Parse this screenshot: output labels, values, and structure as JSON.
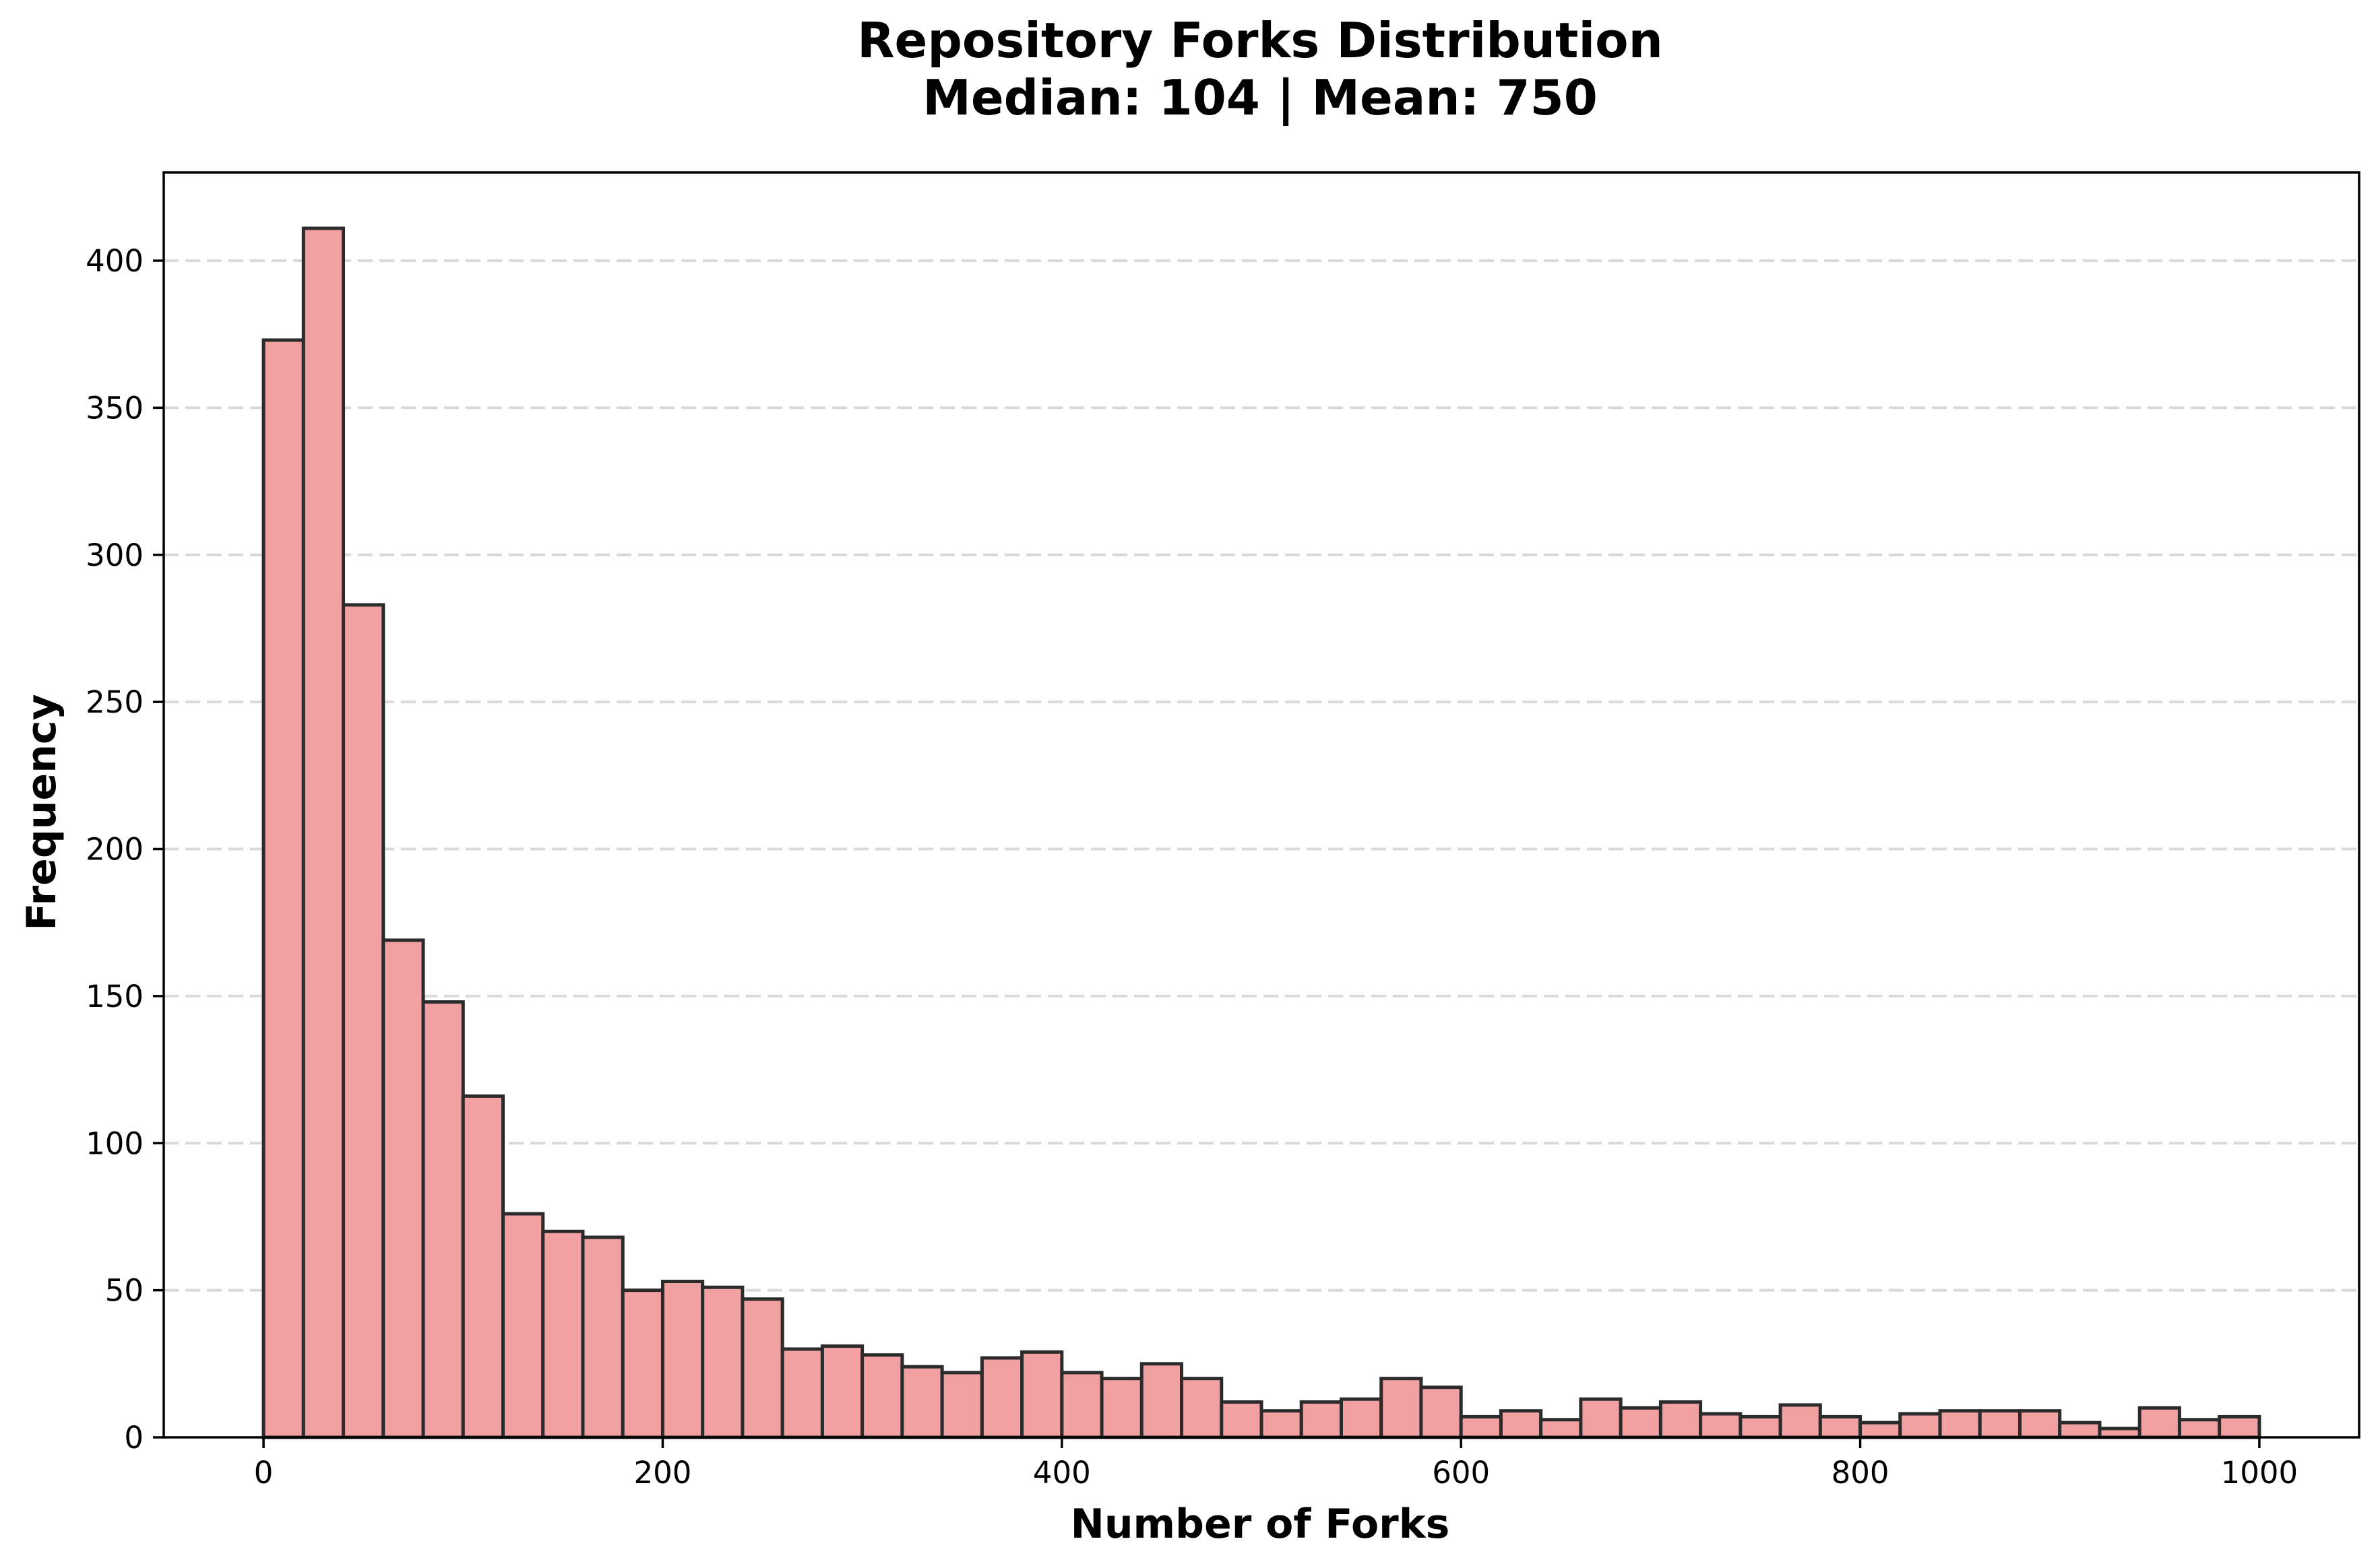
{
  "chart_data": {
    "type": "bar",
    "title": "Repository Forks Distribution",
    "subtitle": "Median: 104 | Mean: 750",
    "xlabel": "Number of Forks",
    "ylabel": "Frequency",
    "xlim": [
      -50,
      1050
    ],
    "ylim": [
      0,
      430
    ],
    "x_ticks": [
      0,
      200,
      400,
      600,
      800,
      1000
    ],
    "y_ticks": [
      0,
      50,
      100,
      150,
      200,
      250,
      300,
      350,
      400
    ],
    "grid": "y-dashed",
    "bin_start": 0,
    "bin_end": 1000,
    "bin_count": 50,
    "values": [
      373,
      411,
      283,
      169,
      148,
      116,
      76,
      70,
      68,
      50,
      53,
      51,
      47,
      30,
      31,
      28,
      24,
      22,
      27,
      29,
      22,
      20,
      25,
      20,
      12,
      9,
      12,
      13,
      20,
      17,
      7,
      9,
      6,
      13,
      10,
      12,
      8,
      7,
      11,
      7,
      5,
      8,
      9,
      9,
      9,
      5,
      3,
      10,
      6,
      7
    ],
    "colors": {
      "bar_fill": "#f1a1a1",
      "bar_edge": "#2b2b2b",
      "grid": "#d9d9d9"
    }
  }
}
